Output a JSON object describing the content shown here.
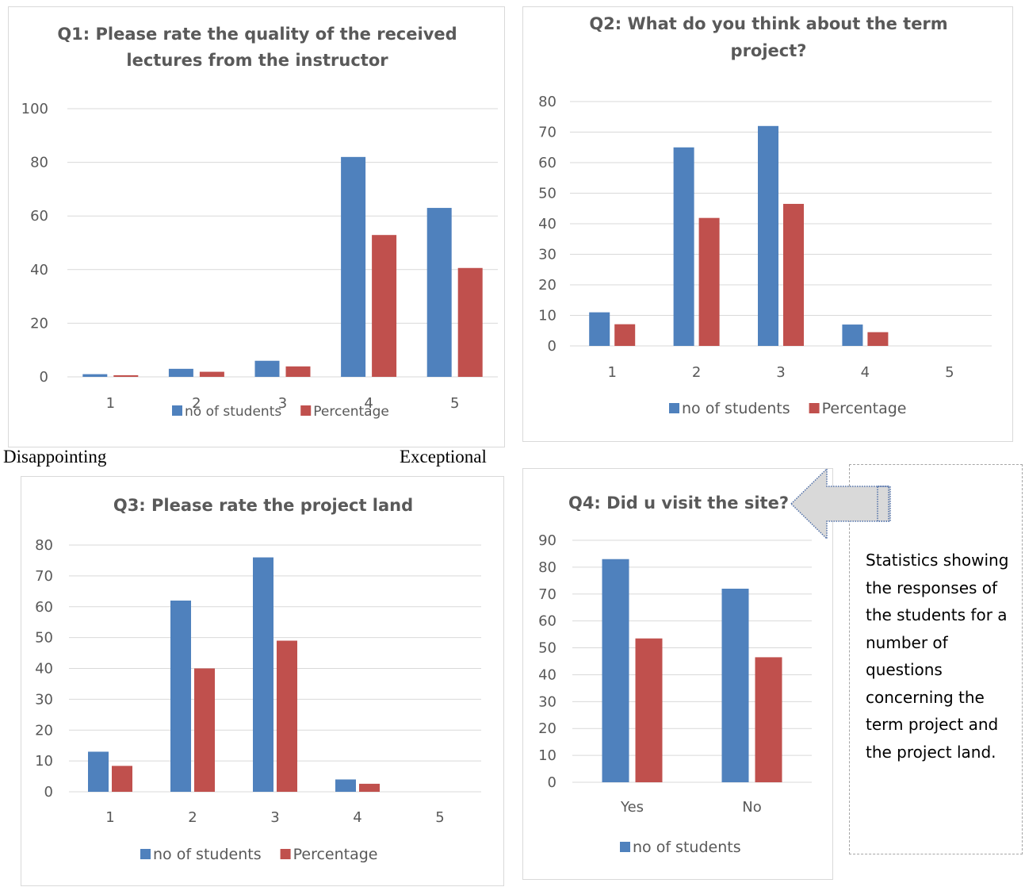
{
  "colors": {
    "series1": "#4f81bd",
    "series2": "#c0504d",
    "grid": "#d9d9d9",
    "title": "#595959",
    "tick": "#595959",
    "arrow_fill": "#d9d9d9",
    "arrow_stroke": "#4f6fa8"
  },
  "scale_labels": {
    "left": "Disappointing",
    "right": "Exceptional"
  },
  "note": {
    "text": "Statistics showing the responses of the students for a number of questions concerning the term project and the project land."
  },
  "chart_data": [
    {
      "type": "bar",
      "title": "Q1: Please rate the quality of the received lectures from the instructor",
      "title_lines": [
        "Q1: Please rate the quality of the received",
        "lectures from the instructor"
      ],
      "categories": [
        "1",
        "2",
        "3",
        "4",
        "5"
      ],
      "series": [
        {
          "name": "no of students",
          "values": [
            1,
            3,
            6,
            82,
            63
          ]
        },
        {
          "name": "Percentage",
          "values": [
            0.6,
            1.9,
            3.9,
            52.9,
            40.6
          ]
        }
      ],
      "ylim": [
        0,
        100
      ],
      "yticks": [
        0,
        20,
        40,
        60,
        80,
        100
      ],
      "grid": true,
      "legend": "bottom"
    },
    {
      "type": "bar",
      "title": "Q2: What do you think about the term project?",
      "title_lines": [
        "Q2: What do you think about the term",
        "project?"
      ],
      "categories": [
        "1",
        "2",
        "3",
        "4",
        "5"
      ],
      "series": [
        {
          "name": "no of students",
          "values": [
            11,
            65,
            72,
            7,
            0
          ]
        },
        {
          "name": "Percentage",
          "values": [
            7.1,
            41.9,
            46.5,
            4.5,
            0
          ]
        }
      ],
      "ylim": [
        0,
        80
      ],
      "yticks": [
        0,
        10,
        20,
        30,
        40,
        50,
        60,
        70,
        80
      ],
      "grid": true,
      "legend": "bottom"
    },
    {
      "type": "bar",
      "title": "Q3: Please rate the project land",
      "title_lines": [
        "Q3: Please rate the project land"
      ],
      "categories": [
        "1",
        "2",
        "3",
        "4",
        "5"
      ],
      "series": [
        {
          "name": "no of students",
          "values": [
            13,
            62,
            76,
            4,
            0
          ]
        },
        {
          "name": "Percentage",
          "values": [
            8.4,
            40,
            49,
            2.6,
            0
          ]
        }
      ],
      "ylim": [
        0,
        80
      ],
      "yticks": [
        0,
        10,
        20,
        30,
        40,
        50,
        60,
        70,
        80
      ],
      "grid": true,
      "legend": "bottom"
    },
    {
      "type": "bar",
      "title": "Q4: Did u visit the site?",
      "title_lines": [
        "Q4: Did u visit the site?"
      ],
      "categories": [
        "Yes",
        "No"
      ],
      "series": [
        {
          "name": "no of students",
          "values": [
            83,
            72
          ]
        },
        {
          "name": "",
          "values": [
            53.5,
            46.5
          ]
        }
      ],
      "ylim": [
        0,
        90
      ],
      "yticks": [
        0,
        10,
        20,
        30,
        40,
        50,
        60,
        70,
        80,
        90
      ],
      "grid": true,
      "legend": "bottom"
    }
  ]
}
